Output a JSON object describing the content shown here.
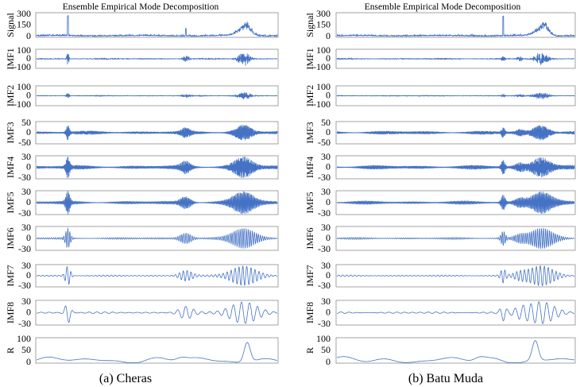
{
  "chart_data": [
    {
      "type": "line",
      "title": "Ensemble Empirical Mode Decomposition",
      "caption": "(a) Cheras",
      "panels": [
        {
          "label": "Signal",
          "ticks": [
            "300",
            "150",
            "0"
          ],
          "ylim": [
            0,
            300
          ]
        },
        {
          "label": "IMF1",
          "ticks": [
            "100",
            "0",
            "-100"
          ],
          "ylim": [
            -100,
            100
          ]
        },
        {
          "label": "IMF2",
          "ticks": [
            "100",
            "0",
            "-100"
          ],
          "ylim": [
            -100,
            100
          ]
        },
        {
          "label": "IMF3",
          "ticks": [
            "50",
            "0",
            "-50"
          ],
          "ylim": [
            -50,
            50
          ]
        },
        {
          "label": "IMF4",
          "ticks": [
            "30",
            "0",
            "-30"
          ],
          "ylim": [
            -30,
            30
          ]
        },
        {
          "label": "IMF5",
          "ticks": [
            "30",
            "0",
            "-30"
          ],
          "ylim": [
            -30,
            30
          ]
        },
        {
          "label": "IMF6",
          "ticks": [
            "30",
            "0",
            "-30"
          ],
          "ylim": [
            -30,
            30
          ]
        },
        {
          "label": "IMF7",
          "ticks": [
            "30",
            "0",
            "-30"
          ],
          "ylim": [
            -30,
            30
          ]
        },
        {
          "label": "IMF8",
          "ticks": [
            "30",
            "0",
            "-30"
          ],
          "ylim": [
            -30,
            30
          ]
        },
        {
          "label": "R",
          "ticks": [
            "100",
            "50",
            "0"
          ],
          "ylim": [
            0,
            100
          ]
        }
      ]
    },
    {
      "type": "line",
      "title": "Ensemble Empirical Mode Decomposition",
      "caption": "(b) Batu Muda",
      "panels": [
        {
          "label": "Signal",
          "ticks": [
            "300",
            "150",
            "0"
          ],
          "ylim": [
            0,
            300
          ]
        },
        {
          "label": "IMF1",
          "ticks": [
            "100",
            "0",
            "-100"
          ],
          "ylim": [
            -100,
            100
          ]
        },
        {
          "label": "IMF2",
          "ticks": [
            "100",
            "0",
            "-100"
          ],
          "ylim": [
            -100,
            100
          ]
        },
        {
          "label": "IMF3",
          "ticks": [
            "50",
            "0",
            "-50"
          ],
          "ylim": [
            -50,
            50
          ]
        },
        {
          "label": "IMF4",
          "ticks": [
            "30",
            "0",
            "-30"
          ],
          "ylim": [
            -30,
            30
          ]
        },
        {
          "label": "IMF5",
          "ticks": [
            "30",
            "0",
            "-30"
          ],
          "ylim": [
            -30,
            30
          ]
        },
        {
          "label": "IMF6",
          "ticks": [
            "30",
            "0",
            "-30"
          ],
          "ylim": [
            -30,
            30
          ]
        },
        {
          "label": "IMF7",
          "ticks": [
            "30",
            "0",
            "-30"
          ],
          "ylim": [
            -30,
            30
          ]
        },
        {
          "label": "IMF8",
          "ticks": [
            "30",
            "0",
            "-30"
          ],
          "ylim": [
            -30,
            30
          ]
        },
        {
          "label": "R",
          "ticks": [
            "100",
            "50",
            "0"
          ],
          "ylim": [
            0,
            100
          ]
        }
      ]
    }
  ],
  "colors": {
    "line": "#4472c4",
    "frame": "#8c8c8c",
    "text": "#000000"
  }
}
